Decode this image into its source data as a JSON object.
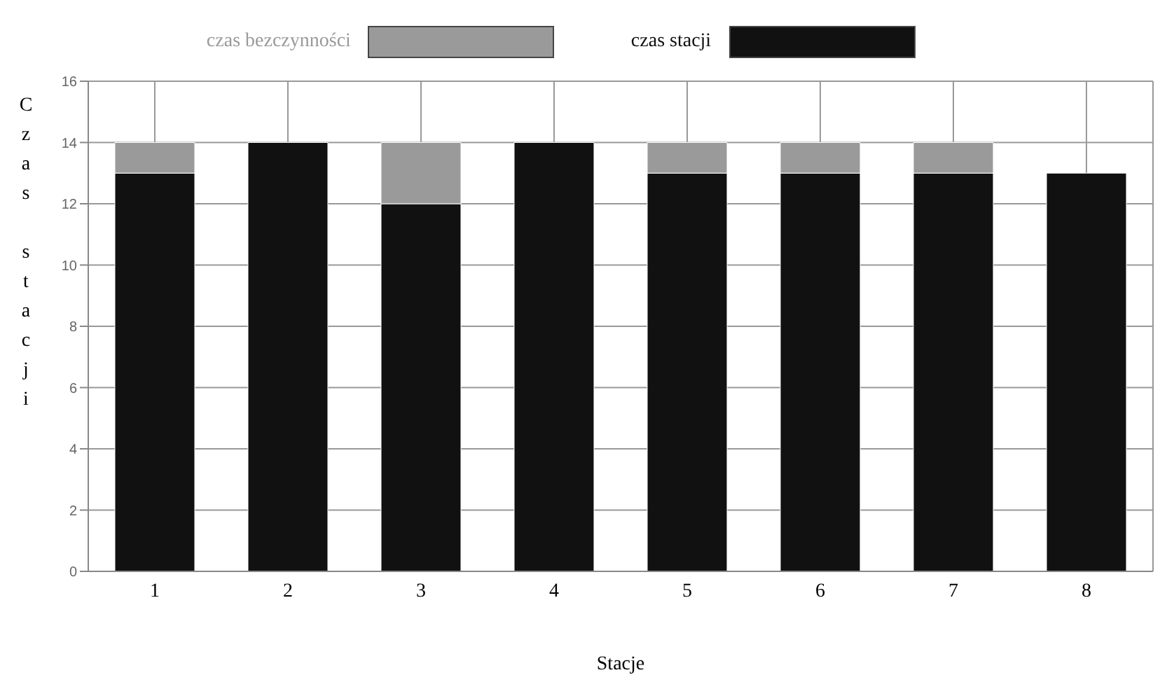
{
  "chart_data": {
    "type": "bar",
    "stacked": true,
    "xlabel": "Stacje",
    "ylabel": "Czas stacji",
    "categories": [
      "1",
      "2",
      "3",
      "4",
      "5",
      "6",
      "7",
      "8"
    ],
    "series": [
      {
        "name": "czas stacji",
        "color": "#111111",
        "values": [
          13,
          14,
          12,
          14,
          13,
          13,
          13,
          13
        ]
      },
      {
        "name": "czas bezczynności",
        "color": "#9a9a9a",
        "values": [
          1,
          0,
          2,
          0,
          1,
          1,
          1,
          0
        ]
      }
    ],
    "ylim": [
      0,
      16
    ],
    "yticks": [
      0,
      2,
      4,
      6,
      8,
      10,
      12,
      14,
      16
    ],
    "grid": true,
    "legend": "top"
  }
}
